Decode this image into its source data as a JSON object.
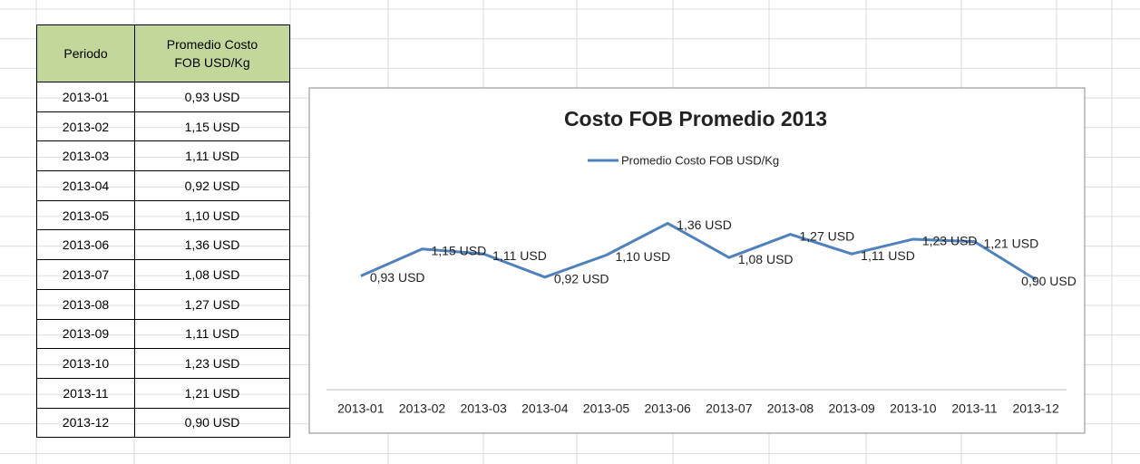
{
  "table": {
    "header": [
      "Periodo",
      "Promedio Costo FOB USD/Kg"
    ],
    "rows": [
      [
        "2013-01",
        "0,93 USD"
      ],
      [
        "2013-02",
        "1,15 USD"
      ],
      [
        "2013-03",
        "1,11 USD"
      ],
      [
        "2013-04",
        "0,92 USD"
      ],
      [
        "2013-05",
        "1,10 USD"
      ],
      [
        "2013-06",
        "1,36 USD"
      ],
      [
        "2013-07",
        "1,08 USD"
      ],
      [
        "2013-08",
        "1,27 USD"
      ],
      [
        "2013-09",
        "1,11 USD"
      ],
      [
        "2013-10",
        "1,23 USD"
      ],
      [
        "2013-11",
        "1,21 USD"
      ],
      [
        "2013-12",
        "0,90 USD"
      ]
    ]
  },
  "chart_data": {
    "type": "line",
    "title": "Costo FOB Promedio 2013",
    "categories": [
      "2013-01",
      "2013-02",
      "2013-03",
      "2013-04",
      "2013-05",
      "2013-06",
      "2013-07",
      "2013-08",
      "2013-09",
      "2013-10",
      "2013-11",
      "2013-12"
    ],
    "series": [
      {
        "name": "Promedio Costo FOB USD/Kg",
        "color": "#4f81bd",
        "values": [
          0.93,
          1.15,
          1.11,
          0.92,
          1.1,
          1.36,
          1.08,
          1.27,
          1.11,
          1.23,
          1.21,
          0.9
        ],
        "value_labels": [
          "0,93 USD",
          "1,15 USD",
          "1,11 USD",
          "0,92 USD",
          "1,10 USD",
          "1,36 USD",
          "1,08 USD",
          "1,27 USD",
          "1,11 USD",
          "1,23 USD",
          "1,21 USD",
          "0,90 USD"
        ]
      }
    ],
    "ylim": [
      0,
      1.6
    ],
    "legend": "top"
  }
}
